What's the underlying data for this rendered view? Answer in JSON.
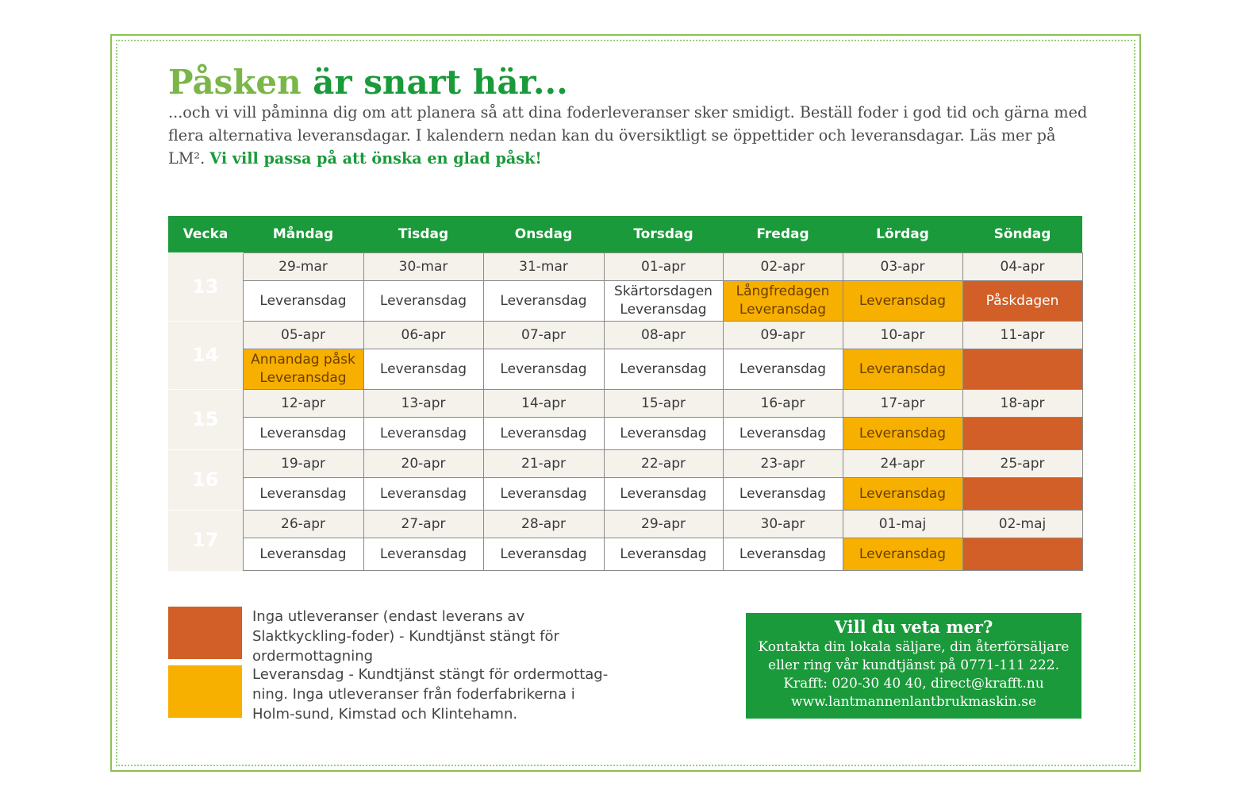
{
  "heading": {
    "part1": "Påsken",
    "part2": " är snart här..."
  },
  "intro": {
    "text": "...och vi vill påminna dig om att planera så att dina foderleveranser sker smidigt. Beställ foder i god tid och gärna med flera alternativa leveransdagar. I kalendern nedan kan du översiktligt se öppettider och leveransdagar. Läs mer på LM². ",
    "wish": "Vi vill passa på att önska en glad påsk!"
  },
  "calendar": {
    "headers": [
      "Vecka",
      "Måndag",
      "Tisdag",
      "Onsdag",
      "Torsdag",
      "Fredag",
      "Lördag",
      "Söndag"
    ],
    "weeks": [
      {
        "week": "13",
        "dates": [
          "29-mar",
          "30-mar",
          "31-mar",
          "01-apr",
          "02-apr",
          "03-apr",
          "04-apr"
        ],
        "statuses": [
          {
            "text": "Leveransdag",
            "type": "normal"
          },
          {
            "text": "Leveransdag",
            "type": "normal"
          },
          {
            "text": "Leveransdag",
            "type": "normal"
          },
          {
            "text": "Skärtorsdagen\nLeveransdag",
            "type": "normal"
          },
          {
            "text": "Långfredagen\nLeveransdag",
            "type": "yellow"
          },
          {
            "text": "Leveransdag",
            "type": "yellow"
          },
          {
            "text": "Påskdagen",
            "type": "orange"
          }
        ]
      },
      {
        "week": "14",
        "dates": [
          "05-apr",
          "06-apr",
          "07-apr",
          "08-apr",
          "09-apr",
          "10-apr",
          "11-apr"
        ],
        "statuses": [
          {
            "text": "Annandag påsk\nLeveransdag",
            "type": "yellow"
          },
          {
            "text": "Leveransdag",
            "type": "normal"
          },
          {
            "text": "Leveransdag",
            "type": "normal"
          },
          {
            "text": "Leveransdag",
            "type": "normal"
          },
          {
            "text": "Leveransdag",
            "type": "normal"
          },
          {
            "text": "Leveransdag",
            "type": "yellow"
          },
          {
            "text": "",
            "type": "orange"
          }
        ]
      },
      {
        "week": "15",
        "dates": [
          "12-apr",
          "13-apr",
          "14-apr",
          "15-apr",
          "16-apr",
          "17-apr",
          "18-apr"
        ],
        "statuses": [
          {
            "text": "Leveransdag",
            "type": "normal"
          },
          {
            "text": "Leveransdag",
            "type": "normal"
          },
          {
            "text": "Leveransdag",
            "type": "normal"
          },
          {
            "text": "Leveransdag",
            "type": "normal"
          },
          {
            "text": "Leveransdag",
            "type": "normal"
          },
          {
            "text": "Leveransdag",
            "type": "yellow"
          },
          {
            "text": "",
            "type": "orange"
          }
        ]
      },
      {
        "week": "16",
        "dates": [
          "19-apr",
          "20-apr",
          "21-apr",
          "22-apr",
          "23-apr",
          "24-apr",
          "25-apr"
        ],
        "statuses": [
          {
            "text": "Leveransdag",
            "type": "normal"
          },
          {
            "text": "Leveransdag",
            "type": "normal"
          },
          {
            "text": "Leveransdag",
            "type": "normal"
          },
          {
            "text": "Leveransdag",
            "type": "normal"
          },
          {
            "text": "Leveransdag",
            "type": "normal"
          },
          {
            "text": "Leveransdag",
            "type": "yellow"
          },
          {
            "text": "",
            "type": "orange"
          }
        ]
      },
      {
        "week": "17",
        "dates": [
          "26-apr",
          "27-apr",
          "28-apr",
          "29-apr",
          "30-apr",
          "01-maj",
          "02-maj"
        ],
        "statuses": [
          {
            "text": "Leveransdag",
            "type": "normal"
          },
          {
            "text": "Leveransdag",
            "type": "normal"
          },
          {
            "text": "Leveransdag",
            "type": "normal"
          },
          {
            "text": "Leveransdag",
            "type": "normal"
          },
          {
            "text": "Leveransdag",
            "type": "normal"
          },
          {
            "text": "Leveransdag",
            "type": "yellow"
          },
          {
            "text": "",
            "type": "orange"
          }
        ]
      }
    ]
  },
  "legend": {
    "orange_text": "Inga utleveranser (endast leverans av Slaktkyckling-foder) - Kundtjänst stängt för ordermottagning",
    "yellow_text": "Leveransdag - Kundtjänst stängt för ordermottag-ning. Inga utleveranser från foderfabrikerna i Holm-sund, Kimstad och Klintehamn."
  },
  "info": {
    "title": "Vill du veta mer?",
    "line1": "Kontakta din lokala säljare, din återförsäljare",
    "line2": "eller ring vår kundtjänst på 0771-111 222.",
    "line3": "Krafft: 020-30 40 40, direct@krafft.nu",
    "line4": "www.lantmannenlantbrukmaskin.se"
  },
  "colors": {
    "green": "#1a9a3a",
    "light_green": "#7ab648",
    "orange": "#d15f27",
    "yellow": "#f7af00",
    "date_bg": "#f5f2ec"
  }
}
